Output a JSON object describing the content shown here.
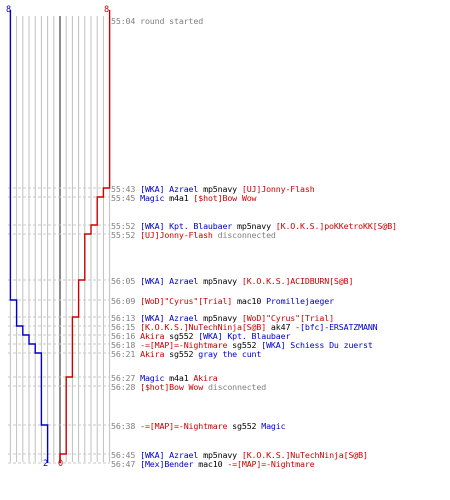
{
  "colors": {
    "team_blue": "#0000cc",
    "team_red": "#cc0000",
    "guide": "#c0c0c0",
    "dashed": "#c8c8c8",
    "timestamp": "#808080",
    "center_line": "#707070"
  },
  "score": {
    "blue_start": "8",
    "red_start": "8",
    "blue_end": "2",
    "red_end": "0"
  },
  "events": [
    {
      "time": "55:04",
      "parts": [
        {
          "t": "round started",
          "c": "gray"
        }
      ]
    },
    {
      "time": "55:43",
      "parts": [
        {
          "t": "[WKA] Azrael",
          "c": "blue"
        },
        {
          "t": " mp5navy ",
          "c": "black"
        },
        {
          "t": "[UJ]Jonny-Flash",
          "c": "red"
        }
      ]
    },
    {
      "time": "55:45",
      "parts": [
        {
          "t": "Magic",
          "c": "blue"
        },
        {
          "t": " m4a1 ",
          "c": "black"
        },
        {
          "t": "[$hot]Bow Wow",
          "c": "red"
        }
      ]
    },
    {
      "time": "55:52",
      "parts": [
        {
          "t": "[WKA] Kpt. Blaubaer",
          "c": "blue"
        },
        {
          "t": " mp5navy ",
          "c": "black"
        },
        {
          "t": "[K.O.K.S.]poKKetroKK[S@B]",
          "c": "red"
        }
      ]
    },
    {
      "time": "55:52",
      "parts": [
        {
          "t": "[UJ]Jonny-Flash",
          "c": "red"
        },
        {
          "t": " disconnected",
          "c": "gray"
        }
      ]
    },
    {
      "time": "56:05",
      "parts": [
        {
          "t": "[WKA] Azrael",
          "c": "blue"
        },
        {
          "t": " mp5navy ",
          "c": "black"
        },
        {
          "t": "[K.O.K.S.]ACIDBURN[S@B]",
          "c": "red"
        }
      ]
    },
    {
      "time": "56:09",
      "parts": [
        {
          "t": "[WoD]\"Cyrus\"[Trial]",
          "c": "red"
        },
        {
          "t": " mac10 ",
          "c": "black"
        },
        {
          "t": "Promillejaeger",
          "c": "blue"
        }
      ]
    },
    {
      "time": "56:13",
      "parts": [
        {
          "t": "[WKA] Azrael",
          "c": "blue"
        },
        {
          "t": " mp5navy ",
          "c": "black"
        },
        {
          "t": "[WoD]\"Cyrus\"[Trial]",
          "c": "red"
        }
      ]
    },
    {
      "time": "56:15",
      "parts": [
        {
          "t": "[K.O.K.S.]NuTechNinja[S@B]",
          "c": "red"
        },
        {
          "t": " ak47 ",
          "c": "black"
        },
        {
          "t": "-[bfc]-ERSATZMANN",
          "c": "blue"
        }
      ]
    },
    {
      "time": "56:16",
      "parts": [
        {
          "t": "Akira",
          "c": "red"
        },
        {
          "t": " sg552 ",
          "c": "black"
        },
        {
          "t": "[WKA] Kpt. Blaubaer",
          "c": "blue"
        }
      ]
    },
    {
      "time": "56:18",
      "parts": [
        {
          "t": "-=[MAP]=-Nightmare",
          "c": "red"
        },
        {
          "t": " sg552 ",
          "c": "black"
        },
        {
          "t": "[WKA] Schiess Du zuerst",
          "c": "blue"
        }
      ]
    },
    {
      "time": "56:21",
      "parts": [
        {
          "t": "Akira",
          "c": "red"
        },
        {
          "t": " sg552 ",
          "c": "black"
        },
        {
          "t": "gray the cunt",
          "c": "blue"
        }
      ]
    },
    {
      "time": "56:27",
      "parts": [
        {
          "t": "Magic",
          "c": "blue"
        },
        {
          "t": " m4a1 ",
          "c": "black"
        },
        {
          "t": "Akira",
          "c": "red"
        }
      ]
    },
    {
      "time": "56:28",
      "parts": [
        {
          "t": "[$hot]Bow Wow",
          "c": "red"
        },
        {
          "t": " disconnected",
          "c": "gray"
        }
      ]
    },
    {
      "time": "56:38",
      "parts": [
        {
          "t": "-=[MAP]=-Nightmare",
          "c": "red"
        },
        {
          "t": " sg552 ",
          "c": "black"
        },
        {
          "t": "Magic",
          "c": "blue"
        }
      ]
    },
    {
      "time": "56:45",
      "parts": [
        {
          "t": "[WKA] Azrael",
          "c": "blue"
        },
        {
          "t": " mp5navy ",
          "c": "black"
        },
        {
          "t": "[K.O.K.S.]NuTechNinja[S@B]",
          "c": "red"
        }
      ]
    },
    {
      "time": "56:47",
      "parts": [
        {
          "t": "[Mex]Bender",
          "c": "blue"
        },
        {
          "t": " mac10 ",
          "c": "black"
        },
        {
          "t": "-=[MAP]=-Nightmare",
          "c": "red"
        }
      ]
    }
  ],
  "progression": {
    "blue_alive": [
      8,
      8,
      8,
      8,
      8,
      8,
      7,
      7,
      6,
      5,
      4,
      3,
      3,
      3,
      2,
      2,
      2
    ],
    "red_alive": [
      8,
      7,
      6,
      5,
      4,
      3,
      3,
      2,
      2,
      2,
      2,
      2,
      1,
      1,
      1,
      0,
      0
    ]
  }
}
